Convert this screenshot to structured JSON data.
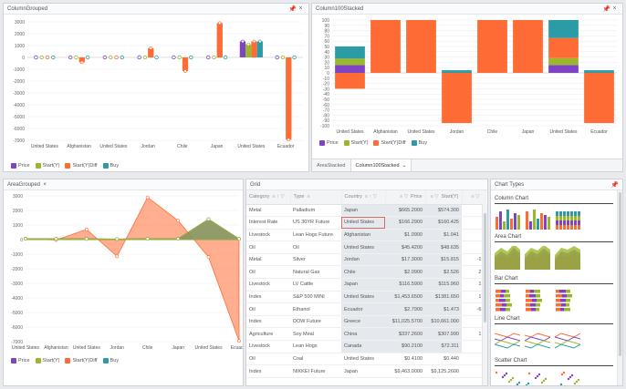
{
  "panels": {
    "grouped": {
      "title": "ColumnGrouped",
      "pin": "📌",
      "close": "×"
    },
    "stacked": {
      "title": "Column100Stacked",
      "pin": "📌",
      "close": "×"
    },
    "area": {
      "title": "AreaGrouped",
      "close": "×"
    },
    "grid": {
      "title": "Grid"
    },
    "chart_types": {
      "title": "Chart Types",
      "pin": "📌"
    }
  },
  "legend": {
    "price": "Price",
    "start": "Start(Y)",
    "startdiff": "Start(Y)Diff",
    "buy": "Buy"
  },
  "colors": {
    "price": "#7e44c4",
    "start": "#9bb72b",
    "startdiff": "#ff6b35",
    "buy": "#2b9ca6"
  },
  "tabs": [
    "AreaStacked",
    "Column100Stacked"
  ],
  "tab_menu": "⌄",
  "chart_data": [
    {
      "type": "bar",
      "title": "ColumnGrouped",
      "categories": [
        "United States",
        "Afghanistan",
        "United States",
        "Jordan",
        "Chile",
        "Japan",
        "United States",
        "Ecuador"
      ],
      "ylim": [
        -7000,
        3000
      ],
      "yticks": [
        "3000",
        "2000",
        "1000",
        "0",
        "-1000",
        "-2000",
        "-3000",
        "-4000",
        "-5000",
        "-6000",
        "-7000"
      ],
      "series": [
        {
          "name": "Price",
          "values": [
            80,
            60,
            50,
            30,
            80,
            60,
            1350,
            80
          ]
        },
        {
          "name": "Start(Y)",
          "values": [
            80,
            60,
            50,
            30,
            80,
            60,
            1100,
            80
          ]
        },
        {
          "name": "Start(Y)Diff",
          "values": [
            80,
            -420,
            50,
            780,
            -1150,
            2900,
            1350,
            -6950
          ]
        },
        {
          "name": "Buy",
          "values": [
            80,
            60,
            50,
            30,
            80,
            60,
            1350,
            80
          ]
        }
      ]
    },
    {
      "type": "bar",
      "title": "Column100Stacked",
      "categories": [
        "United States",
        "Afghanistan",
        "United States",
        "Jordan",
        "Chile",
        "Japan",
        "United States",
        "Ecuador"
      ],
      "ylim": [
        -100,
        100
      ],
      "yticks": [
        "100",
        "90",
        "80",
        "70",
        "60",
        "50",
        "40",
        "30",
        "20",
        "10",
        "0",
        "-10",
        "-20",
        "-30",
        "-40",
        "-50",
        "-60",
        "-70",
        "-80",
        "-90",
        "-100"
      ],
      "series": [
        {
          "name": "Price",
          "values": [
            15,
            0,
            0,
            0,
            0,
            0,
            15,
            0
          ]
        },
        {
          "name": "Start(Y)",
          "values": [
            12,
            0,
            0,
            0,
            0,
            0,
            13,
            0
          ]
        },
        {
          "name": "Start(Y)Diff",
          "values": [
            -30,
            100,
            100,
            -95,
            100,
            100,
            38,
            -95
          ]
        },
        {
          "name": "Buy",
          "values": [
            23,
            0,
            0,
            5,
            0,
            0,
            34,
            5
          ]
        }
      ]
    },
    {
      "type": "area",
      "title": "AreaGrouped",
      "categories": [
        "United States",
        "Afghanistan",
        "United States",
        "Jordan",
        "Chile",
        "Japan",
        "United States",
        "Ecuador"
      ],
      "ylim": [
        -7000,
        3000
      ],
      "yticks": [
        "3000",
        "2000",
        "1000",
        "0",
        "-1000",
        "-2000",
        "-3000",
        "-4000",
        "-5000",
        "-6000",
        "-7000"
      ],
      "series": [
        {
          "name": "Price",
          "values": [
            60,
            50,
            50,
            40,
            60,
            60,
            1400,
            50
          ]
        },
        {
          "name": "Start(Y)",
          "values": [
            60,
            50,
            50,
            40,
            60,
            60,
            1400,
            50
          ]
        },
        {
          "name": "Start(Y)Diff",
          "values": [
            60,
            -30,
            700,
            -1150,
            2900,
            1300,
            -1200,
            -6950
          ]
        },
        {
          "name": "Buy",
          "values": [
            60,
            50,
            50,
            40,
            60,
            60,
            1400,
            50
          ]
        }
      ]
    }
  ],
  "grid": {
    "columns": [
      "Category",
      "Type",
      "Country",
      "Price",
      "Start(Y)",
      ""
    ],
    "column_icons": [
      "≡ ↑ ▽",
      "≡",
      "≡ ↑ ▽",
      "≡ ▽",
      "≡ ▽",
      "≡ ▽"
    ],
    "rows": [
      [
        "Metal",
        "Palladium",
        "Japan",
        "$665.2000",
        "$574.300",
        ""
      ],
      [
        "Interest Rate",
        "US 30YR Future",
        "United States",
        "$166.2900",
        "$160.425",
        ""
      ],
      [
        "Livestock",
        "Lean Hogs Future",
        "Afghanistan",
        "$1.0900",
        "$1.041",
        ""
      ],
      [
        "Oil",
        "Oil",
        "United States",
        "$45.4200",
        "$48.635",
        ""
      ],
      [
        "Metal",
        "Silver",
        "Jordan",
        "$17.3000",
        "$15.815",
        "-1,"
      ],
      [
        "Oil",
        "Natural Gas",
        "Chile",
        "$2.0900",
        "$2.526",
        "2,"
      ],
      [
        "Livestock",
        "LV Cattle",
        "Japan",
        "$116.5900",
        "$115.960",
        "1,"
      ],
      [
        "Index",
        "S&P 500 MINI",
        "United States",
        "$1,453.6500",
        "$1381.650",
        "1,"
      ],
      [
        "Oil",
        "Ethanol",
        "Ecuador",
        "$2.7900",
        "$1.473",
        "-6,"
      ],
      [
        "Index",
        "DOW Future",
        "Greece",
        "$11,025.5700",
        "$10,661.000",
        ""
      ],
      [
        "Agriculture",
        "Soy Meal",
        "China",
        "$337.2600",
        "$307.990",
        "1,"
      ],
      [
        "Livestock",
        "Lean Hogs",
        "Canada",
        "$90.2100",
        "$72.311",
        ""
      ],
      [
        "Oil",
        "Coal",
        "United States",
        "$0.4100",
        "$0.440",
        ""
      ],
      [
        "Index",
        "NIKKEI Future",
        "Japan",
        "$9,463.0000",
        "$9,125.2600",
        ""
      ]
    ]
  },
  "chart_types": [
    {
      "label": "Column Chart"
    },
    {
      "label": "Area Chart"
    },
    {
      "label": "Bar Chart"
    },
    {
      "label": "Line Chart"
    },
    {
      "label": "Scatter Chart"
    }
  ]
}
